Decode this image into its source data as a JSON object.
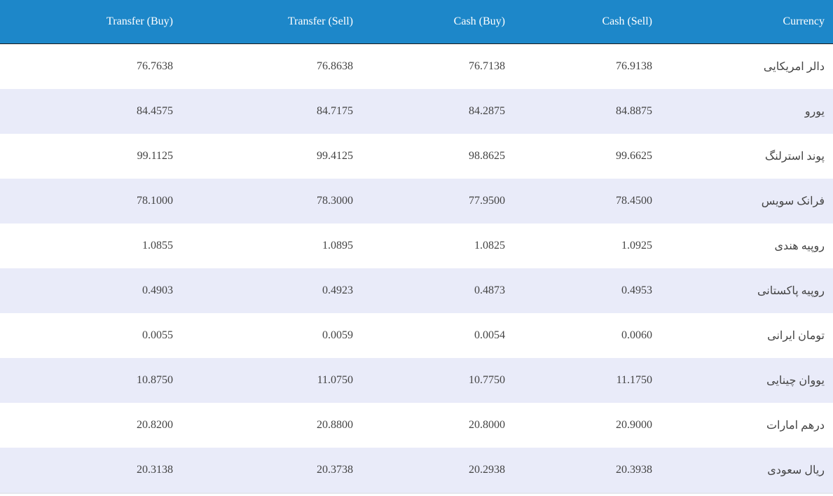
{
  "table": {
    "header": [
      "Transfer (Buy)",
      "Transfer (Sell)",
      "Cash (Buy)",
      "Cash (Sell)",
      "Currency"
    ],
    "rows": [
      [
        "76.7638",
        "76.8638",
        "76.7138",
        "76.9138",
        "دالر امریکایی"
      ],
      [
        "84.4575",
        "84.7175",
        "84.2875",
        "84.8875",
        "یورو"
      ],
      [
        "99.1125",
        "99.4125",
        "98.8625",
        "99.6625",
        "پوند استرلنگ"
      ],
      [
        "78.1000",
        "78.3000",
        "77.9500",
        "78.4500",
        "فرانک سویس"
      ],
      [
        "1.0855",
        "1.0895",
        "1.0825",
        "1.0925",
        "روپیه هندی"
      ],
      [
        "0.4903",
        "0.4923",
        "0.4873",
        "0.4953",
        "روپیه پاکستانی"
      ],
      [
        "0.0055",
        "0.0059",
        "0.0054",
        "0.0060",
        "تومان ایرانی"
      ],
      [
        "10.8750",
        "11.0750",
        "10.7750",
        "11.1750",
        "یووان چینایی"
      ],
      [
        "20.8200",
        "20.8800",
        "20.8000",
        "20.9000",
        "درهم امارات"
      ],
      [
        "20.3138",
        "20.3738",
        "20.2938",
        "20.3938",
        "ریال سعودی"
      ]
    ]
  }
}
